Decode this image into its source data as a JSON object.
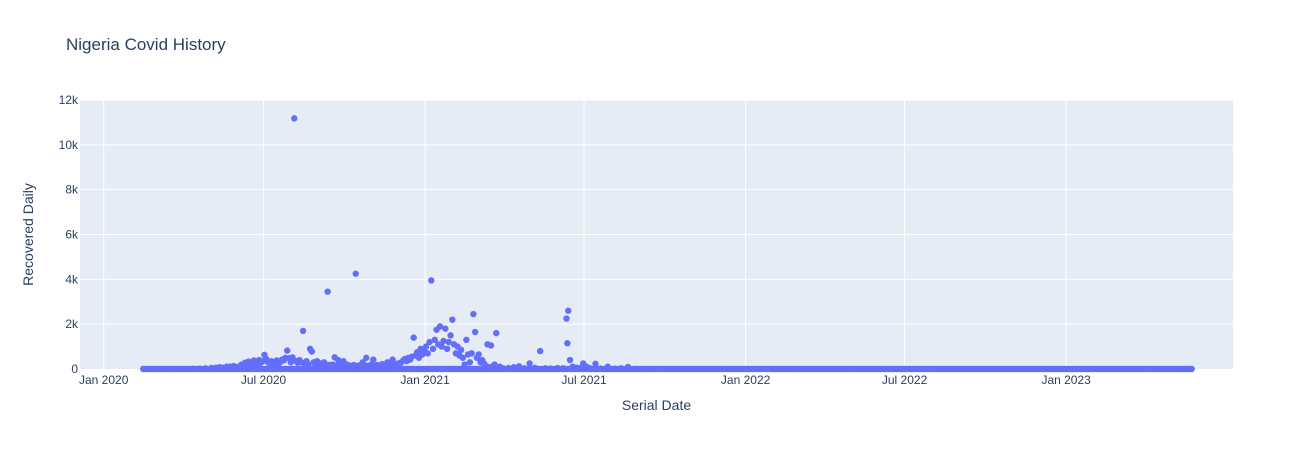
{
  "chart_data": {
    "type": "scatter",
    "title": "Nigeria Covid History",
    "xlabel": "Serial Date",
    "ylabel": "Recovered Daily",
    "xlim": [
      "2019-12-05",
      "2023-07-10"
    ],
    "ylim": [
      0,
      12000
    ],
    "x_ticks": [
      {
        "date": "2020-01-01",
        "label": "Jan 2020"
      },
      {
        "date": "2020-07-01",
        "label": "Jul 2020"
      },
      {
        "date": "2021-01-01",
        "label": "Jan 2021"
      },
      {
        "date": "2021-07-01",
        "label": "Jul 2021"
      },
      {
        "date": "2022-01-01",
        "label": "Jan 2022"
      },
      {
        "date": "2022-07-01",
        "label": "Jul 2022"
      },
      {
        "date": "2023-01-01",
        "label": "Jan 2023"
      }
    ],
    "y_ticks": [
      {
        "value": 0,
        "label": "0"
      },
      {
        "value": 2000,
        "label": "2k"
      },
      {
        "value": 4000,
        "label": "4k"
      },
      {
        "value": 6000,
        "label": "6k"
      },
      {
        "value": 8000,
        "label": "8k"
      },
      {
        "value": 10000,
        "label": "10k"
      },
      {
        "value": 12000,
        "label": "12k"
      }
    ],
    "grid": true,
    "colors": {
      "marker": "#636efa",
      "plot_bg": "#e5ecf6",
      "grid": "#ffffff",
      "text": "#2a3f5f"
    },
    "series": [
      {
        "points": [
          [
            "2020-03-01",
            0
          ],
          [
            "2020-03-15",
            0
          ],
          [
            "2020-03-28",
            2
          ],
          [
            "2020-04-05",
            5
          ],
          [
            "2020-04-12",
            10
          ],
          [
            "2020-04-19",
            15
          ],
          [
            "2020-04-26",
            30
          ],
          [
            "2020-05-03",
            45
          ],
          [
            "2020-05-08",
            60
          ],
          [
            "2020-05-12",
            80
          ],
          [
            "2020-05-16",
            60
          ],
          [
            "2020-05-20",
            100
          ],
          [
            "2020-05-24",
            110
          ],
          [
            "2020-05-28",
            130
          ],
          [
            "2020-06-01",
            90
          ],
          [
            "2020-06-04",
            120
          ],
          [
            "2020-06-06",
            200
          ],
          [
            "2020-06-08",
            150
          ],
          [
            "2020-06-10",
            280
          ],
          [
            "2020-06-12",
            180
          ],
          [
            "2020-06-14",
            330
          ],
          [
            "2020-06-16",
            250
          ],
          [
            "2020-06-18",
            200
          ],
          [
            "2020-06-20",
            380
          ],
          [
            "2020-06-22",
            300
          ],
          [
            "2020-06-24",
            220
          ],
          [
            "2020-06-26",
            400
          ],
          [
            "2020-06-28",
            280
          ],
          [
            "2020-06-30",
            350
          ],
          [
            "2020-07-02",
            630
          ],
          [
            "2020-07-04",
            450
          ],
          [
            "2020-07-06",
            300
          ],
          [
            "2020-07-08",
            250
          ],
          [
            "2020-07-10",
            350
          ],
          [
            "2020-07-12",
            200
          ],
          [
            "2020-07-14",
            280
          ],
          [
            "2020-07-16",
            380
          ],
          [
            "2020-07-18",
            230
          ],
          [
            "2020-07-20",
            300
          ],
          [
            "2020-07-22",
            420
          ],
          [
            "2020-07-24",
            380
          ],
          [
            "2020-07-26",
            500
          ],
          [
            "2020-07-28",
            820
          ],
          [
            "2020-07-30",
            480
          ],
          [
            "2020-08-01",
            300
          ],
          [
            "2020-08-03",
            520
          ],
          [
            "2020-08-05",
            11180
          ],
          [
            "2020-08-07",
            350
          ],
          [
            "2020-08-09",
            280
          ],
          [
            "2020-08-11",
            400
          ],
          [
            "2020-08-13",
            300
          ],
          [
            "2020-08-15",
            1700
          ],
          [
            "2020-08-17",
            250
          ],
          [
            "2020-08-19",
            350
          ],
          [
            "2020-08-21",
            200
          ],
          [
            "2020-08-23",
            900
          ],
          [
            "2020-08-25",
            780
          ],
          [
            "2020-08-27",
            300
          ],
          [
            "2020-08-29",
            220
          ],
          [
            "2020-08-31",
            350
          ],
          [
            "2020-09-02",
            180
          ],
          [
            "2020-09-04",
            250
          ],
          [
            "2020-09-06",
            150
          ],
          [
            "2020-09-08",
            300
          ],
          [
            "2020-09-10",
            200
          ],
          [
            "2020-09-12",
            3450
          ],
          [
            "2020-09-14",
            180
          ],
          [
            "2020-09-16",
            120
          ],
          [
            "2020-09-18",
            200
          ],
          [
            "2020-09-20",
            520
          ],
          [
            "2020-09-22",
            150
          ],
          [
            "2020-09-24",
            400
          ],
          [
            "2020-09-26",
            100
          ],
          [
            "2020-09-28",
            250
          ],
          [
            "2020-09-30",
            350
          ],
          [
            "2020-10-02",
            120
          ],
          [
            "2020-10-04",
            200
          ],
          [
            "2020-10-06",
            90
          ],
          [
            "2020-10-08",
            150
          ],
          [
            "2020-10-10",
            80
          ],
          [
            "2020-10-12",
            180
          ],
          [
            "2020-10-14",
            4250
          ],
          [
            "2020-10-16",
            100
          ],
          [
            "2020-10-18",
            160
          ],
          [
            "2020-10-20",
            80
          ],
          [
            "2020-10-22",
            300
          ],
          [
            "2020-10-24",
            120
          ],
          [
            "2020-10-26",
            500
          ],
          [
            "2020-10-28",
            150
          ],
          [
            "2020-10-30",
            90
          ],
          [
            "2020-11-01",
            200
          ],
          [
            "2020-11-03",
            420
          ],
          [
            "2020-11-05",
            100
          ],
          [
            "2020-11-07",
            180
          ],
          [
            "2020-11-09",
            80
          ],
          [
            "2020-11-11",
            150
          ],
          [
            "2020-11-13",
            220
          ],
          [
            "2020-11-15",
            100
          ],
          [
            "2020-11-17",
            180
          ],
          [
            "2020-11-19",
            300
          ],
          [
            "2020-11-21",
            140
          ],
          [
            "2020-11-23",
            250
          ],
          [
            "2020-11-25",
            420
          ],
          [
            "2020-11-27",
            200
          ],
          [
            "2020-11-29",
            160
          ],
          [
            "2020-12-01",
            250
          ],
          [
            "2020-12-03",
            200
          ],
          [
            "2020-12-05",
            300
          ],
          [
            "2020-12-07",
            380
          ],
          [
            "2020-12-09",
            450
          ],
          [
            "2020-12-11",
            350
          ],
          [
            "2020-12-13",
            500
          ],
          [
            "2020-12-15",
            420
          ],
          [
            "2020-12-17",
            550
          ],
          [
            "2020-12-19",
            1400
          ],
          [
            "2020-12-21",
            600
          ],
          [
            "2020-12-23",
            750
          ],
          [
            "2020-12-25",
            500
          ],
          [
            "2020-12-27",
            900
          ],
          [
            "2020-12-29",
            650
          ],
          [
            "2020-12-31",
            800
          ],
          [
            "2021-01-02",
            1000
          ],
          [
            "2021-01-04",
            700
          ],
          [
            "2021-01-06",
            1200
          ],
          [
            "2021-01-08",
            3950
          ],
          [
            "2021-01-10",
            900
          ],
          [
            "2021-01-12",
            1300
          ],
          [
            "2021-01-14",
            1750
          ],
          [
            "2021-01-16",
            1100
          ],
          [
            "2021-01-18",
            1900
          ],
          [
            "2021-01-20",
            1000
          ],
          [
            "2021-01-22",
            1250
          ],
          [
            "2021-01-24",
            1800
          ],
          [
            "2021-01-26",
            900
          ],
          [
            "2021-01-28",
            1200
          ],
          [
            "2021-01-30",
            1500
          ],
          [
            "2021-02-01",
            2200
          ],
          [
            "2021-02-03",
            1100
          ],
          [
            "2021-02-05",
            700
          ],
          [
            "2021-02-07",
            1000
          ],
          [
            "2021-02-09",
            600
          ],
          [
            "2021-02-11",
            850
          ],
          [
            "2021-02-13",
            500
          ],
          [
            "2021-02-15",
            200
          ],
          [
            "2021-02-17",
            1300
          ],
          [
            "2021-02-19",
            650
          ],
          [
            "2021-02-21",
            300
          ],
          [
            "2021-02-23",
            700
          ],
          [
            "2021-02-25",
            2450
          ],
          [
            "2021-02-27",
            1650
          ],
          [
            "2021-03-01",
            500
          ],
          [
            "2021-03-03",
            650
          ],
          [
            "2021-03-05",
            300
          ],
          [
            "2021-03-07",
            400
          ],
          [
            "2021-03-09",
            250
          ],
          [
            "2021-03-11",
            150
          ],
          [
            "2021-03-13",
            1100
          ],
          [
            "2021-03-15",
            80
          ],
          [
            "2021-03-17",
            1050
          ],
          [
            "2021-03-19",
            120
          ],
          [
            "2021-03-21",
            200
          ],
          [
            "2021-03-23",
            1600
          ],
          [
            "2021-03-25",
            50
          ],
          [
            "2021-03-27",
            100
          ],
          [
            "2021-03-31",
            30
          ],
          [
            "2021-04-06",
            40
          ],
          [
            "2021-04-12",
            80
          ],
          [
            "2021-04-18",
            120
          ],
          [
            "2021-04-24",
            30
          ],
          [
            "2021-04-30",
            250
          ],
          [
            "2021-05-06",
            50
          ],
          [
            "2021-05-12",
            800
          ],
          [
            "2021-05-18",
            30
          ],
          [
            "2021-05-24",
            20
          ],
          [
            "2021-06-01",
            40
          ],
          [
            "2021-06-07",
            30
          ],
          [
            "2021-06-11",
            2250
          ],
          [
            "2021-06-12",
            1150
          ],
          [
            "2021-06-13",
            2600
          ],
          [
            "2021-06-15",
            400
          ],
          [
            "2021-06-18",
            100
          ],
          [
            "2021-06-22",
            60
          ],
          [
            "2021-06-26",
            40
          ],
          [
            "2021-06-30",
            250
          ],
          [
            "2021-07-04",
            100
          ],
          [
            "2021-07-08",
            30
          ],
          [
            "2021-07-14",
            230
          ],
          [
            "2021-07-20",
            20
          ],
          [
            "2021-07-28",
            100
          ],
          [
            "2021-08-05",
            15
          ],
          [
            "2021-08-12",
            30
          ],
          [
            "2021-08-20",
            90
          ],
          [
            "2021-08-28",
            10
          ],
          [
            "2021-09-10",
            0
          ]
        ]
      },
      {
        "zero_run": {
          "start": "2020-02-15",
          "end": "2023-05-24",
          "step_days": 3,
          "value": 0
        }
      }
    ]
  }
}
